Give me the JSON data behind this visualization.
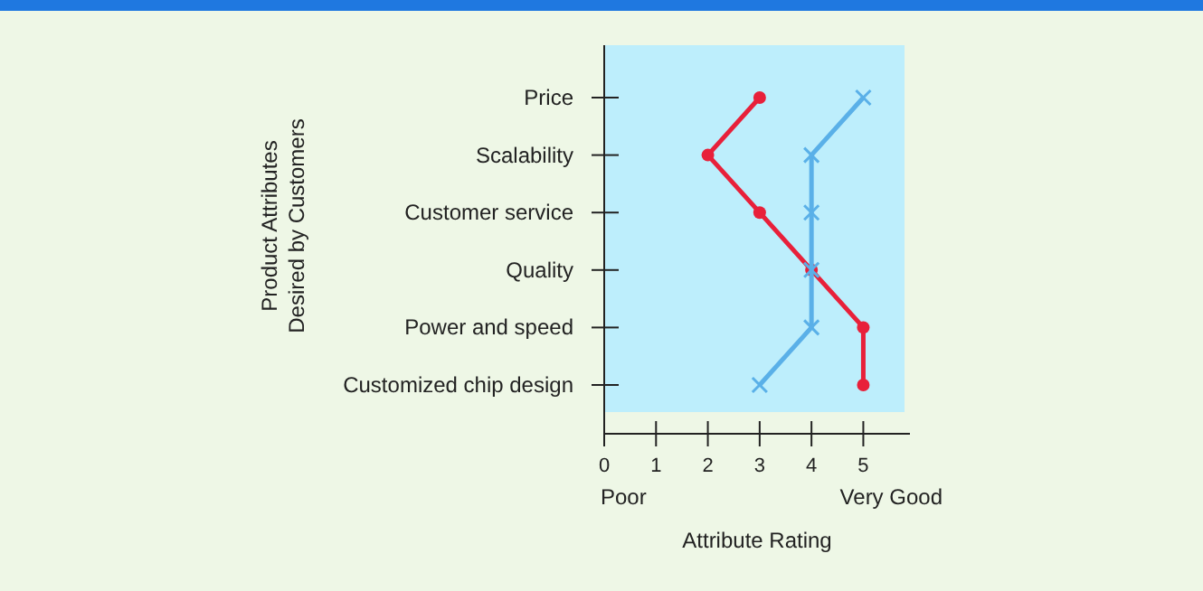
{
  "chart_data": {
    "type": "line",
    "orientation": "horizontal",
    "ylabel": "Product Attributes\nDesired by Customers",
    "xlabel": "Attribute Rating",
    "categories": [
      "Price",
      "Scalability",
      "Customer service",
      "Quality",
      "Power and speed",
      "Customized chip design"
    ],
    "series": [
      {
        "color": "#e8203a",
        "marker": "circle",
        "values": [
          3,
          2,
          3,
          4,
          5,
          5
        ]
      },
      {
        "color": "#5ab0e8",
        "marker": "cross",
        "values": [
          5,
          4,
          4,
          4,
          4,
          3
        ]
      }
    ],
    "xlim": [
      0,
      5.9
    ],
    "xticks": [
      {
        "value": 0,
        "label": "0"
      },
      1,
      2,
      3,
      4,
      5
    ],
    "annotations": [
      "Poor",
      "Very Good"
    ],
    "grid": false
  }
}
